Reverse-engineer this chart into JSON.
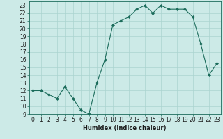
{
  "x": [
    0,
    1,
    2,
    3,
    4,
    5,
    6,
    7,
    8,
    9,
    10,
    11,
    12,
    13,
    14,
    15,
    16,
    17,
    18,
    19,
    20,
    21,
    22,
    23
  ],
  "y": [
    12,
    12,
    11.5,
    11,
    12.5,
    11,
    9.5,
    9,
    13,
    16,
    20.5,
    21,
    21.5,
    22.5,
    23,
    22,
    23,
    22.5,
    22.5,
    22.5,
    21.5,
    18,
    14,
    15.5
  ],
  "line_color": "#1a6b5a",
  "marker": "D",
  "marker_size": 2.0,
  "bg_color": "#cceae7",
  "grid_color": "#aad4d0",
  "xlabel": "Humidex (Indice chaleur)",
  "xlim": [
    -0.5,
    23.5
  ],
  "ylim": [
    9,
    23.5
  ],
  "yticks": [
    9,
    10,
    11,
    12,
    13,
    14,
    15,
    16,
    17,
    18,
    19,
    20,
    21,
    22,
    23
  ],
  "xticks": [
    0,
    1,
    2,
    3,
    4,
    5,
    6,
    7,
    8,
    9,
    10,
    11,
    12,
    13,
    14,
    15,
    16,
    17,
    18,
    19,
    20,
    21,
    22,
    23
  ],
  "xlabel_fontsize": 6.0,
  "tick_fontsize": 5.5,
  "line_width": 0.8,
  "spine_color": "#1a6b5a"
}
